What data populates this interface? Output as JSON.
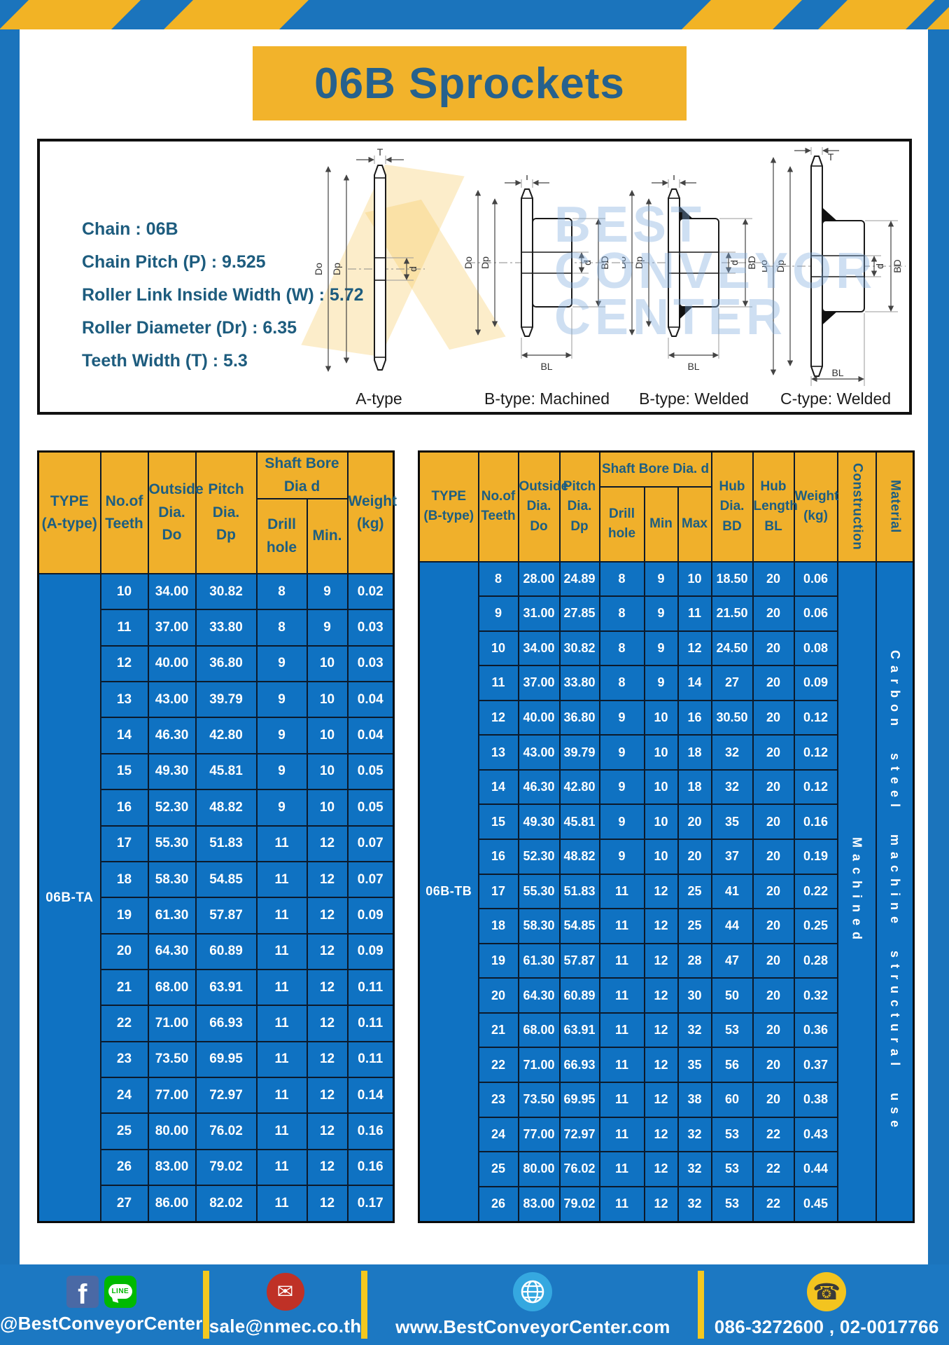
{
  "page": {
    "title": "06B Sprockets"
  },
  "colors": {
    "frame_blue": "#1b74bc",
    "cell_blue": "#0f72c2",
    "gold": "#f2b32b",
    "header_gold": "#f0b02b",
    "dark_blue_text": "#1d5e81",
    "footer_bar_yellow": "#f4c81f",
    "white_text": "#ffffff"
  },
  "specs": {
    "lines": [
      "Chain  : 06B",
      "Chain Pitch (P)  :  9.525",
      "Roller Link Inside Width (W)  :  5.72",
      "Roller Diameter (Dr)  : 6.35",
      "Teeth Width (T)  :  5.3"
    ]
  },
  "diagram": {
    "watermark": {
      "line1": "BEST",
      "line2": "CONVEYOR",
      "line3": "CENTER"
    },
    "dims": {
      "T": "T",
      "Do": "Do",
      "Dp": "Dp",
      "d": "d",
      "BD": "BD",
      "BL": "BL"
    },
    "types": [
      "A-type",
      "B-type: Machined",
      "B-type: Welded",
      "C-type: Welded"
    ]
  },
  "tables": {
    "left": {
      "headers": {
        "type": "TYPE\n(A-type)",
        "teeth": "No.of\nTeeth",
        "outside": "Outside\nDia.\nDo",
        "pitch": "Pitch Dia.\nDp",
        "shaft": "Shaft Bore Dia d",
        "drill": "Drill hole",
        "min": "Min.",
        "weight": "Weight\n(kg)"
      },
      "type_value": "06B-TA",
      "rows": [
        [
          "10",
          "34.00",
          "30.82",
          "8",
          "9",
          "0.02"
        ],
        [
          "11",
          "37.00",
          "33.80",
          "8",
          "9",
          "0.03"
        ],
        [
          "12",
          "40.00",
          "36.80",
          "9",
          "10",
          "0.03"
        ],
        [
          "13",
          "43.00",
          "39.79",
          "9",
          "10",
          "0.04"
        ],
        [
          "14",
          "46.30",
          "42.80",
          "9",
          "10",
          "0.04"
        ],
        [
          "15",
          "49.30",
          "45.81",
          "9",
          "10",
          "0.05"
        ],
        [
          "16",
          "52.30",
          "48.82",
          "9",
          "10",
          "0.05"
        ],
        [
          "17",
          "55.30",
          "51.83",
          "11",
          "12",
          "0.07"
        ],
        [
          "18",
          "58.30",
          "54.85",
          "11",
          "12",
          "0.07"
        ],
        [
          "19",
          "61.30",
          "57.87",
          "11",
          "12",
          "0.09"
        ],
        [
          "20",
          "64.30",
          "60.89",
          "11",
          "12",
          "0.09"
        ],
        [
          "21",
          "68.00",
          "63.91",
          "11",
          "12",
          "0.11"
        ],
        [
          "22",
          "71.00",
          "66.93",
          "11",
          "12",
          "0.11"
        ],
        [
          "23",
          "73.50",
          "69.95",
          "11",
          "12",
          "0.11"
        ],
        [
          "24",
          "77.00",
          "72.97",
          "11",
          "12",
          "0.14"
        ],
        [
          "25",
          "80.00",
          "76.02",
          "11",
          "12",
          "0.16"
        ],
        [
          "26",
          "83.00",
          "79.02",
          "11",
          "12",
          "0.16"
        ],
        [
          "27",
          "86.00",
          "82.02",
          "11",
          "12",
          "0.17"
        ]
      ]
    },
    "right": {
      "headers": {
        "type": "TYPE\n(B-type)",
        "teeth": "No.of\nTeeth",
        "outside": "Outside\nDia.\nDo",
        "pitch": "Pitch\nDia.\nDp",
        "shaft": "Shaft Bore Dia.  d",
        "drill": "Drill hole",
        "min": "Min",
        "max": "Max",
        "hub_dia": "Hub\nDia.\nBD",
        "hub_len": "Hub\nLength\nBL",
        "weight": "Weight\n(kg)",
        "construction": "Construction",
        "material": "Material"
      },
      "type_value": "06B-TB",
      "construction_value": "Machined",
      "material_value": "Carbon steel machine structural use",
      "rows": [
        [
          "8",
          "28.00",
          "24.89",
          "8",
          "9",
          "10",
          "18.50",
          "20",
          "0.06"
        ],
        [
          "9",
          "31.00",
          "27.85",
          "8",
          "9",
          "11",
          "21.50",
          "20",
          "0.06"
        ],
        [
          "10",
          "34.00",
          "30.82",
          "8",
          "9",
          "12",
          "24.50",
          "20",
          "0.08"
        ],
        [
          "11",
          "37.00",
          "33.80",
          "8",
          "9",
          "14",
          "27",
          "20",
          "0.09"
        ],
        [
          "12",
          "40.00",
          "36.80",
          "9",
          "10",
          "16",
          "30.50",
          "20",
          "0.12"
        ],
        [
          "13",
          "43.00",
          "39.79",
          "9",
          "10",
          "18",
          "32",
          "20",
          "0.12"
        ],
        [
          "14",
          "46.30",
          "42.80",
          "9",
          "10",
          "18",
          "32",
          "20",
          "0.12"
        ],
        [
          "15",
          "49.30",
          "45.81",
          "9",
          "10",
          "20",
          "35",
          "20",
          "0.16"
        ],
        [
          "16",
          "52.30",
          "48.82",
          "9",
          "10",
          "20",
          "37",
          "20",
          "0.19"
        ],
        [
          "17",
          "55.30",
          "51.83",
          "11",
          "12",
          "25",
          "41",
          "20",
          "0.22"
        ],
        [
          "18",
          "58.30",
          "54.85",
          "11",
          "12",
          "25",
          "44",
          "20",
          "0.25"
        ],
        [
          "19",
          "61.30",
          "57.87",
          "11",
          "12",
          "28",
          "47",
          "20",
          "0.28"
        ],
        [
          "20",
          "64.30",
          "60.89",
          "11",
          "12",
          "30",
          "50",
          "20",
          "0.32"
        ],
        [
          "21",
          "68.00",
          "63.91",
          "11",
          "12",
          "32",
          "53",
          "20",
          "0.36"
        ],
        [
          "22",
          "71.00",
          "66.93",
          "11",
          "12",
          "35",
          "56",
          "20",
          "0.37"
        ],
        [
          "23",
          "73.50",
          "69.95",
          "11",
          "12",
          "38",
          "60",
          "20",
          "0.38"
        ],
        [
          "24",
          "77.00",
          "72.97",
          "11",
          "12",
          "32",
          "53",
          "22",
          "0.43"
        ],
        [
          "25",
          "80.00",
          "76.02",
          "11",
          "12",
          "32",
          "53",
          "22",
          "0.44"
        ],
        [
          "26",
          "83.00",
          "79.02",
          "11",
          "12",
          "32",
          "53",
          "22",
          "0.45"
        ]
      ]
    }
  },
  "footer": {
    "facebook": "@BestConveyorCenter",
    "line_badge": "LINE",
    "fb_letter": "f",
    "email": "sale@nmec.co.th",
    "website": "www.BestConveyorCenter.com",
    "phone": "086-3272600 , 02-0017766",
    "mail_glyph": "✉",
    "phone_glyph": "☎"
  }
}
